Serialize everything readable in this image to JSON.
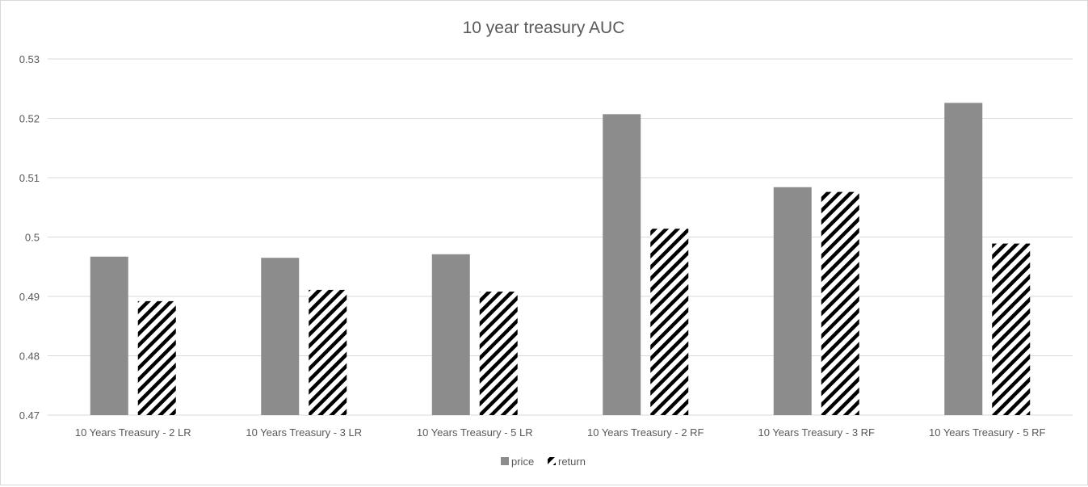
{
  "chart_data": {
    "type": "bar",
    "title": "10 year treasury AUC",
    "xlabel": "",
    "ylabel": "",
    "ylim": [
      0.47,
      0.53
    ],
    "yticks": [
      "0.47",
      "0.48",
      "0.49",
      "0.5",
      "0.51",
      "0.52",
      "0.53"
    ],
    "grid": true,
    "legend_position": "bottom",
    "categories": [
      "10 Years Treasury - 2 LR",
      "10 Years Treasury - 3 LR",
      "10 Years Treasury - 5 LR",
      "10 Years Treasury - 2 RF",
      "10 Years Treasury - 3 RF",
      "10 Years Treasury - 5 RF"
    ],
    "series": [
      {
        "name": "price",
        "color": "#8c8c8c",
        "pattern": "solid",
        "values": [
          0.4967,
          0.4965,
          0.4971,
          0.5207,
          0.5084,
          0.5226
        ]
      },
      {
        "name": "return",
        "color": "#000000",
        "pattern": "diagonal-stripes",
        "values": [
          0.4892,
          0.4911,
          0.4908,
          0.5014,
          0.5076,
          0.4989
        ]
      }
    ]
  }
}
